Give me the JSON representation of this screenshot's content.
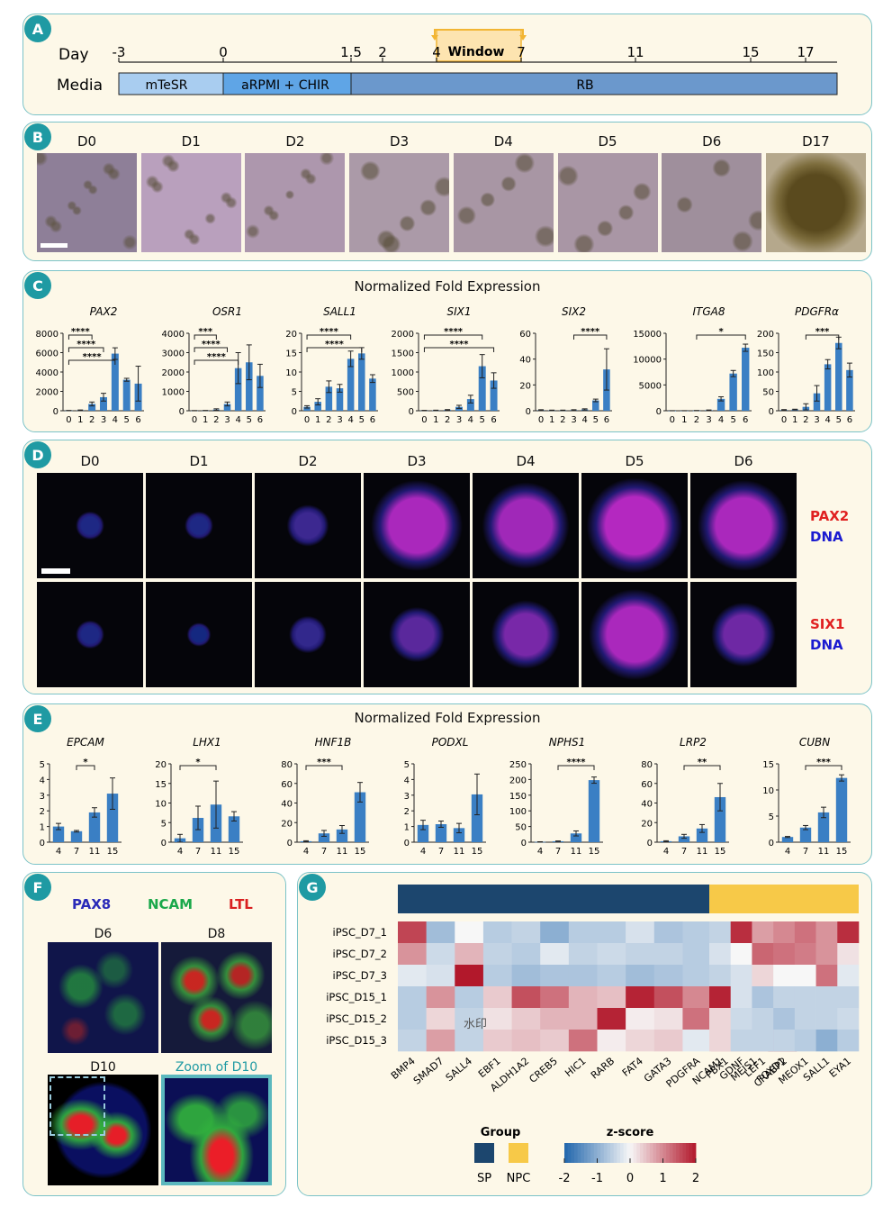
{
  "panels": {
    "a": "A",
    "b": "B",
    "c": "C",
    "d": "D",
    "e": "E",
    "f": "F",
    "g": "G"
  },
  "timeline": {
    "row_day": "Day",
    "row_media": "Media",
    "days": [
      "-3",
      "0",
      "1.5",
      "2",
      "4",
      "7",
      "11",
      "15",
      "17"
    ],
    "window": "Window",
    "media": [
      "mTeSR",
      "aRPMI + CHIR",
      "RB"
    ],
    "colors": {
      "mtesr": "#a9cdf0",
      "arpmi": "#5fa5e6",
      "rb": "#6b98cc"
    }
  },
  "brightfield": {
    "labels": [
      "D0",
      "D1",
      "D2",
      "D3",
      "D4",
      "D5",
      "D6",
      "D17"
    ]
  },
  "qpcr1": {
    "title": "Normalized Fold Expression",
    "charts_ref": "chart_data[0..6]"
  },
  "if_panel": {
    "labels": [
      "D0",
      "D1",
      "D2",
      "D3",
      "D4",
      "D5",
      "D6"
    ],
    "row1": {
      "marker": "PAX2",
      "dna": "DNA"
    },
    "row2": {
      "marker": "SIX1",
      "dna": "DNA"
    }
  },
  "qpcr2": {
    "title": "Normalized Fold Expression"
  },
  "panel_f": {
    "markers": [
      "PAX8",
      "NCAM",
      "LTL"
    ],
    "marker_colors": [
      "#2a2ab8",
      "#1aa84a",
      "#d92020"
    ],
    "labels": [
      "D6",
      "D8",
      "D10",
      "Zoom of D10"
    ]
  },
  "heatmap": {
    "rows": [
      "iPSC_D7_1",
      "iPSC_D7_2",
      "iPSC_D7_3",
      "iPSC_D15_1",
      "iPSC_D15_2",
      "iPSC_D15_3"
    ],
    "sp_genes": [
      "BMP4",
      "SMAD7",
      "SALL4",
      "EBF1",
      "ALDH1A2",
      "CREB5",
      "HIC1",
      "RARB",
      "FAT4",
      "GATA3",
      "PDGFRA",
      "PBX1",
      "MEIS1",
      "FOXD1"
    ],
    "npc_genes": [
      "NCAM1",
      "GDNF",
      "LEF1",
      "CRABP2",
      "MEOX1",
      "SALL1",
      "EYA1"
    ],
    "sp_z": [
      [
        1.6,
        -0.8,
        0.0,
        -0.6,
        -0.5,
        -1.0,
        -0.6,
        -0.6,
        -0.3,
        -0.7,
        -0.6,
        -0.6,
        0.1,
        -0.5
      ],
      [
        0.9,
        -0.4,
        0.6,
        -0.5,
        -0.6,
        -0.2,
        -0.5,
        -0.4,
        -0.5,
        -0.5,
        -0.6,
        -0.6,
        -0.5,
        -0.6
      ],
      [
        -0.2,
        -0.3,
        2.0,
        -0.6,
        -0.8,
        -0.7,
        -0.7,
        -0.6,
        -0.8,
        -0.7,
        -0.6,
        -0.6,
        -0.9,
        -0.8
      ],
      [
        -0.6,
        0.9,
        -0.6,
        0.4,
        1.5,
        1.2,
        0.6,
        0.5,
        1.9,
        1.5,
        1.0,
        1.6,
        1.5,
        0.3
      ],
      [
        -0.6,
        0.3,
        -0.5,
        0.2,
        0.4,
        0.6,
        0.6,
        1.9,
        0.1,
        0.2,
        1.2,
        0.4,
        0.2,
        0.5
      ],
      [
        -0.5,
        0.8,
        -0.5,
        0.4,
        0.5,
        0.4,
        1.2,
        0.1,
        0.3,
        0.4,
        -0.2,
        0.5,
        0.4,
        1.6
      ]
    ],
    "npc_z": [
      [
        -0.5,
        1.8,
        0.8,
        1.0,
        1.2,
        0.9,
        1.8
      ],
      [
        -0.3,
        0.0,
        1.3,
        1.2,
        1.1,
        0.9,
        0.2
      ],
      [
        -0.5,
        -0.3,
        0.3,
        0.0,
        0.0,
        1.2,
        -0.2
      ],
      [
        1.9,
        -0.3,
        -0.7,
        -0.5,
        -0.5,
        -0.5,
        -0.5
      ],
      [
        0.3,
        -0.4,
        -0.5,
        -0.7,
        -0.5,
        -0.5,
        -0.4
      ],
      [
        0.3,
        -0.5,
        -0.5,
        -0.5,
        -0.6,
        -1.0,
        -0.6
      ]
    ],
    "watermark": "水印",
    "group_label": "Group",
    "groups": [
      {
        "name": "SP",
        "color": "#1c466e"
      },
      {
        "name": "NPC",
        "color": "#f7c948"
      }
    ],
    "zscore_label": "z-score",
    "zscore_ticks": [
      "-2",
      "-1",
      "0",
      "1",
      "2"
    ]
  },
  "chart_data": [
    {
      "type": "bar",
      "title": "PAX2",
      "categories": [
        "0",
        "1",
        "2",
        "3",
        "4",
        "5",
        "6"
      ],
      "values": [
        20,
        50,
        700,
        1400,
        5900,
        3200,
        2800
      ],
      "errors": [
        10,
        30,
        200,
        400,
        600,
        150,
        1800
      ],
      "ylim": [
        0,
        8000
      ],
      "yticks": [
        "0",
        "2000",
        "4000",
        "6000",
        "8000"
      ],
      "sig": [
        {
          "from": 0,
          "to": 2,
          "label": "****"
        },
        {
          "from": 0,
          "to": 3,
          "label": "****"
        },
        {
          "from": 0,
          "to": 4,
          "label": "****"
        }
      ]
    },
    {
      "type": "bar",
      "title": "OSR1",
      "categories": [
        "0",
        "1",
        "2",
        "3",
        "4",
        "5",
        "6"
      ],
      "values": [
        5,
        10,
        60,
        350,
        2200,
        2500,
        1800
      ],
      "errors": [
        5,
        5,
        40,
        100,
        800,
        900,
        600
      ],
      "ylim": [
        0,
        4000
      ],
      "yticks": [
        "0",
        "1000",
        "2000",
        "3000",
        "4000"
      ],
      "sig": [
        {
          "from": 0,
          "to": 2,
          "label": "***"
        },
        {
          "from": 0,
          "to": 3,
          "label": "****"
        },
        {
          "from": 0,
          "to": 4,
          "label": "****"
        }
      ]
    },
    {
      "type": "bar",
      "title": "SALL1",
      "categories": [
        "0",
        "1",
        "2",
        "3",
        "4",
        "5",
        "6"
      ],
      "values": [
        1,
        2.3,
        6.2,
        5.8,
        13.4,
        14.8,
        8.3
      ],
      "errors": [
        0.3,
        0.8,
        1.5,
        1.0,
        2.0,
        1.5,
        1.0
      ],
      "ylim": [
        0,
        20
      ],
      "yticks": [
        "0",
        "5",
        "10",
        "15",
        "20"
      ],
      "sig": [
        {
          "from": 0,
          "to": 4,
          "label": "****"
        },
        {
          "from": 0,
          "to": 5,
          "label": "****"
        }
      ]
    },
    {
      "type": "bar",
      "title": "SIX1",
      "categories": [
        "0",
        "1",
        "2",
        "3",
        "4",
        "5",
        "6"
      ],
      "values": [
        5,
        10,
        20,
        100,
        300,
        1150,
        780
      ],
      "errors": [
        5,
        5,
        10,
        40,
        100,
        300,
        200
      ],
      "ylim": [
        0,
        2000
      ],
      "yticks": [
        "0",
        "500",
        "1000",
        "1500",
        "2000"
      ],
      "sig": [
        {
          "from": 0,
          "to": 5,
          "label": "****"
        },
        {
          "from": 0,
          "to": 6,
          "label": "****"
        }
      ]
    },
    {
      "type": "bar",
      "title": "SIX2",
      "categories": [
        "0",
        "1",
        "2",
        "3",
        "4",
        "5",
        "6"
      ],
      "values": [
        0.5,
        0.3,
        0.3,
        0.5,
        1,
        8,
        32
      ],
      "errors": [
        0.3,
        0.2,
        0.2,
        0.3,
        0.5,
        1,
        16
      ],
      "ylim": [
        0,
        60
      ],
      "yticks": [
        "0",
        "20",
        "40",
        "60"
      ],
      "sig": [
        {
          "from": 3,
          "to": 6,
          "label": "****"
        }
      ]
    },
    {
      "type": "bar",
      "title": "ITGA8",
      "categories": [
        "0",
        "1",
        "2",
        "3",
        "4",
        "5",
        "6"
      ],
      "values": [
        10,
        10,
        30,
        100,
        2300,
        7200,
        12200
      ],
      "errors": [
        5,
        5,
        20,
        50,
        400,
        600,
        700
      ],
      "ylim": [
        0,
        15000
      ],
      "yticks": [
        "0",
        "5000",
        "10000",
        "15000"
      ],
      "sig": [
        {
          "from": 2,
          "to": 6,
          "label": "*"
        }
      ]
    },
    {
      "type": "bar",
      "title": "PDGFRα",
      "categories": [
        "0",
        "1",
        "2",
        "3",
        "4",
        "5",
        "6"
      ],
      "values": [
        2,
        3,
        10,
        45,
        120,
        175,
        105
      ],
      "errors": [
        1,
        1,
        8,
        20,
        12,
        15,
        18
      ],
      "ylim": [
        0,
        200
      ],
      "yticks": [
        "0",
        "50",
        "100",
        "150",
        "200"
      ],
      "sig": [
        {
          "from": 2,
          "to": 5,
          "label": "***"
        }
      ]
    },
    {
      "type": "bar",
      "title": "EPCAM",
      "categories": [
        "4",
        "7",
        "11",
        "15"
      ],
      "values": [
        1,
        0.7,
        1.9,
        3.1
      ],
      "errors": [
        0.2,
        0.05,
        0.3,
        1.0
      ],
      "ylim": [
        0,
        5
      ],
      "yticks": [
        "0",
        "1",
        "2",
        "3",
        "4",
        "5"
      ],
      "sig": [
        {
          "from": 1,
          "to": 2,
          "label": "*"
        }
      ]
    },
    {
      "type": "bar",
      "title": "LHX1",
      "categories": [
        "4",
        "7",
        "11",
        "15"
      ],
      "values": [
        1,
        6.2,
        9.6,
        6.6
      ],
      "errors": [
        1,
        3,
        6,
        1.2
      ],
      "ylim": [
        0,
        20
      ],
      "yticks": [
        "0",
        "5",
        "10",
        "15",
        "20"
      ],
      "sig": [
        {
          "from": 0,
          "to": 2,
          "label": "*"
        }
      ]
    },
    {
      "type": "bar",
      "title": "HNF1B",
      "categories": [
        "4",
        "7",
        "11",
        "15"
      ],
      "values": [
        1,
        9,
        13,
        51
      ],
      "errors": [
        0.5,
        3,
        4,
        10
      ],
      "ylim": [
        0,
        80
      ],
      "yticks": [
        "0",
        "20",
        "40",
        "60",
        "80"
      ],
      "sig": [
        {
          "from": 0,
          "to": 2,
          "label": "***"
        }
      ]
    },
    {
      "type": "bar",
      "title": "PODXL",
      "categories": [
        "4",
        "7",
        "11",
        "15"
      ],
      "values": [
        1.1,
        1.15,
        0.9,
        3.05
      ],
      "errors": [
        0.3,
        0.2,
        0.3,
        1.3
      ],
      "ylim": [
        0,
        5
      ],
      "yticks": [
        "0",
        "1",
        "2",
        "3",
        "4",
        "5"
      ],
      "sig": []
    },
    {
      "type": "bar",
      "title": "NPHS1",
      "categories": [
        "4",
        "7",
        "11",
        "15"
      ],
      "values": [
        1,
        3,
        28,
        198
      ],
      "errors": [
        0.5,
        1,
        8,
        10
      ],
      "ylim": [
        0,
        250
      ],
      "yticks": [
        "0",
        "50",
        "100",
        "150",
        "200",
        "250"
      ],
      "sig": [
        {
          "from": 1,
          "to": 3,
          "label": "****"
        }
      ]
    },
    {
      "type": "bar",
      "title": "LRP2",
      "categories": [
        "4",
        "7",
        "11",
        "15"
      ],
      "values": [
        1,
        6,
        14,
        46
      ],
      "errors": [
        0.5,
        2,
        4,
        14
      ],
      "ylim": [
        0,
        80
      ],
      "yticks": [
        "0",
        "20",
        "40",
        "60",
        "80"
      ],
      "sig": [
        {
          "from": 1,
          "to": 3,
          "label": "**"
        }
      ]
    },
    {
      "type": "bar",
      "title": "CUBN",
      "categories": [
        "4",
        "7",
        "11",
        "15"
      ],
      "values": [
        1,
        2.8,
        5.7,
        12.3
      ],
      "errors": [
        0.1,
        0.4,
        1.0,
        0.6
      ],
      "ylim": [
        0,
        15
      ],
      "yticks": [
        "0",
        "5",
        "10",
        "15"
      ],
      "sig": [
        {
          "from": 1,
          "to": 3,
          "label": "***"
        }
      ]
    }
  ]
}
